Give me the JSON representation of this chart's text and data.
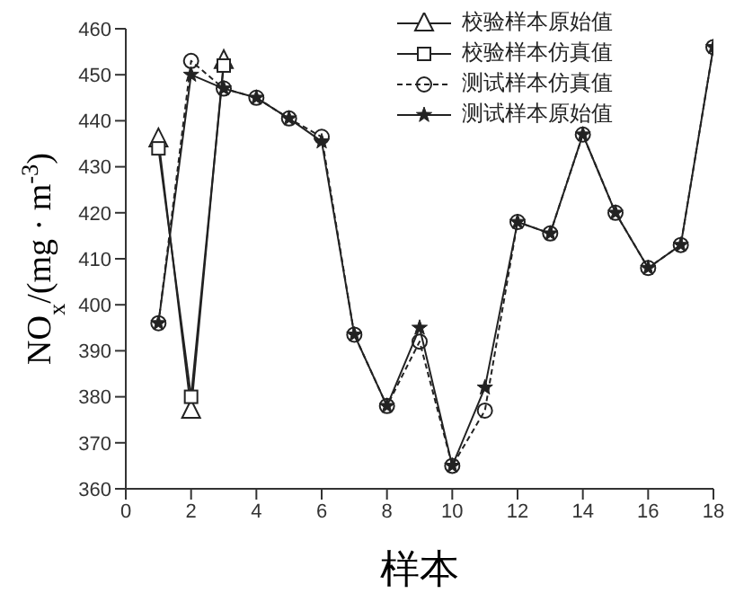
{
  "chart_data": {
    "type": "line",
    "xlabel": "样本",
    "ylabel": "NO$_{x}$/(mg · m$^{-3}$)",
    "xlim": [
      0,
      18
    ],
    "xticks": [
      0,
      2,
      4,
      6,
      8,
      10,
      12,
      14,
      16,
      18
    ],
    "ylim": [
      360,
      460
    ],
    "yticks": [
      360,
      370,
      380,
      390,
      400,
      410,
      420,
      430,
      440,
      450,
      460
    ],
    "grid": false,
    "legend": "top right",
    "series": [
      {
        "name": "校验样本原始值",
        "color": "#222222",
        "marker": "triangle",
        "line_style": "solid",
        "x": [
          1,
          2,
          3
        ],
        "values": [
          436,
          377,
          453
        ]
      },
      {
        "name": "校验样本仿真值",
        "color": "#222222",
        "marker": "square",
        "line_style": "solid",
        "x": [
          1,
          2,
          3
        ],
        "values": [
          434,
          380,
          452
        ]
      },
      {
        "name": "测试样本仿真值",
        "color": "#222222",
        "marker": "circle",
        "line_style": "dashed",
        "x": [
          1,
          2,
          3,
          4,
          5,
          6,
          7,
          8,
          9,
          10,
          11,
          12,
          13,
          14,
          15,
          16,
          17,
          18
        ],
        "values": [
          396,
          453,
          447,
          445,
          440.5,
          436.5,
          393.5,
          378,
          392,
          365,
          377,
          418,
          415.5,
          437,
          420,
          408,
          413,
          456
        ]
      },
      {
        "name": "测试样本原始值",
        "color": "#222222",
        "marker": "star",
        "line_style": "solid",
        "x": [
          1,
          2,
          3,
          4,
          5,
          6,
          7,
          8,
          9,
          10,
          11,
          12,
          13,
          14,
          15,
          16,
          17,
          18
        ],
        "values": [
          396,
          450,
          447,
          445,
          440.5,
          435.5,
          393.5,
          378,
          395,
          365,
          382,
          418,
          415.5,
          437,
          420,
          408,
          413,
          456
        ]
      }
    ]
  }
}
